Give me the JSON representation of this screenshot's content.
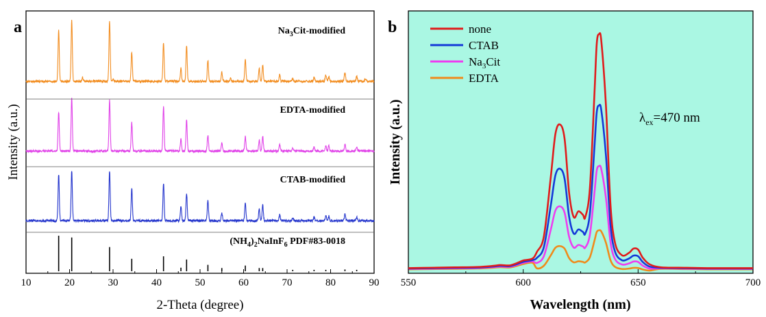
{
  "chart_data": [
    {
      "type": "line",
      "panel_label": "a",
      "xlabel": "2-Theta (degree)",
      "ylabel": "Intensity (a.u.)",
      "xlim": [
        10,
        90
      ],
      "x_ticks": [
        10,
        20,
        30,
        40,
        50,
        60,
        70,
        80,
        90
      ],
      "grid": false,
      "series": [
        {
          "name": "Na3Cit-modified",
          "label_main": "Na",
          "label_sub": "3",
          "label_rest": "Cit-modified",
          "color": "#f28c1e",
          "peaks": [
            [
              17.5,
              0.8
            ],
            [
              20.5,
              0.95
            ],
            [
              23.0,
              0.06
            ],
            [
              29.2,
              0.93
            ],
            [
              30.0,
              0.03
            ],
            [
              34.3,
              0.45
            ],
            [
              41.6,
              0.6
            ],
            [
              45.6,
              0.2
            ],
            [
              46.9,
              0.55
            ],
            [
              51.8,
              0.33
            ],
            [
              55.0,
              0.14
            ],
            [
              57.0,
              0.05
            ],
            [
              60.4,
              0.35
            ],
            [
              63.6,
              0.2
            ],
            [
              64.4,
              0.25
            ],
            [
              68.3,
              0.1
            ],
            [
              71.3,
              0.04
            ],
            [
              76.2,
              0.06
            ],
            [
              78.9,
              0.1
            ],
            [
              79.6,
              0.08
            ],
            [
              83.3,
              0.13
            ],
            [
              86.0,
              0.08
            ],
            [
              88.0,
              0.04
            ]
          ]
        },
        {
          "name": "EDTA-modified",
          "color": "#e040e8",
          "peaks": [
            [
              17.5,
              0.6
            ],
            [
              20.5,
              0.83
            ],
            [
              29.2,
              0.78
            ],
            [
              34.3,
              0.44
            ],
            [
              41.6,
              0.68
            ],
            [
              45.6,
              0.19
            ],
            [
              46.9,
              0.48
            ],
            [
              51.8,
              0.25
            ],
            [
              55.0,
              0.13
            ],
            [
              60.4,
              0.22
            ],
            [
              63.6,
              0.17
            ],
            [
              64.4,
              0.23
            ],
            [
              68.3,
              0.1
            ],
            [
              71.3,
              0.04
            ],
            [
              76.2,
              0.06
            ],
            [
              78.9,
              0.08
            ],
            [
              79.6,
              0.08
            ],
            [
              83.3,
              0.1
            ],
            [
              86.0,
              0.07
            ]
          ]
        },
        {
          "name": "CTAB-modified",
          "color": "#2233cc",
          "peaks": [
            [
              17.5,
              0.72
            ],
            [
              20.5,
              0.78
            ],
            [
              29.2,
              0.77
            ],
            [
              34.3,
              0.5
            ],
            [
              41.6,
              0.58
            ],
            [
              45.6,
              0.22
            ],
            [
              46.9,
              0.43
            ],
            [
              51.8,
              0.32
            ],
            [
              55.0,
              0.12
            ],
            [
              60.4,
              0.28
            ],
            [
              63.6,
              0.18
            ],
            [
              64.4,
              0.24
            ],
            [
              68.3,
              0.09
            ],
            [
              71.3,
              0.04
            ],
            [
              76.2,
              0.05
            ],
            [
              78.9,
              0.08
            ],
            [
              79.6,
              0.07
            ],
            [
              83.3,
              0.1
            ],
            [
              86.0,
              0.06
            ]
          ]
        },
        {
          "name": "(NH4)2NaInF6 PDF#83-0018",
          "type": "stick",
          "color": "#000000",
          "label_parts": [
            "(NH",
            "4",
            ")",
            "2",
            "NaInF",
            "6",
            "  PDF#83-0018"
          ],
          "peaks": [
            [
              17.5,
              1.0
            ],
            [
              20.5,
              0.95
            ],
            [
              29.2,
              0.68
            ],
            [
              34.3,
              0.35
            ],
            [
              41.6,
              0.42
            ],
            [
              45.6,
              0.1
            ],
            [
              46.9,
              0.33
            ],
            [
              51.8,
              0.18
            ],
            [
              55.0,
              0.09
            ],
            [
              60.4,
              0.16
            ],
            [
              63.6,
              0.09
            ],
            [
              64.4,
              0.09
            ],
            [
              71.3,
              0.04
            ],
            [
              76.2,
              0.04
            ],
            [
              78.9,
              0.04
            ],
            [
              83.3,
              0.05
            ],
            [
              86.0,
              0.04
            ]
          ]
        }
      ]
    },
    {
      "type": "line",
      "panel_label": "b",
      "xlabel": "Wavelength (nm)",
      "ylabel": "Intensity (a.u.)",
      "xlim": [
        550,
        700
      ],
      "x_ticks": [
        550,
        600,
        650,
        700
      ],
      "grid": false,
      "legend": "top-left",
      "background": "#aaf7e3",
      "annotation": {
        "main": "λ",
        "sub": "ex",
        "rest": "=470 nm"
      },
      "series": [
        {
          "name": "none",
          "color": "#e01b1b",
          "scale": 1.0
        },
        {
          "name": "CTAB",
          "color": "#1438d8",
          "scale": 0.7
        },
        {
          "name": "Na3Cit",
          "label_main": "Na",
          "label_sub": "3",
          "label_rest": "Cit",
          "color": "#ee3cf0",
          "scale": 0.445
        },
        {
          "name": "EDTA",
          "color": "#f08a1a",
          "scale": 0.175
        }
      ],
      "shape": [
        [
          550,
          0.02
        ],
        [
          560,
          0.022
        ],
        [
          570,
          0.024
        ],
        [
          580,
          0.026
        ],
        [
          587,
          0.032
        ],
        [
          590,
          0.036
        ],
        [
          594,
          0.034
        ],
        [
          597,
          0.045
        ],
        [
          600,
          0.06
        ],
        [
          604,
          0.07
        ],
        [
          606,
          0.085
        ],
        [
          609,
          0.15
        ],
        [
          612,
          0.4
        ],
        [
          614,
          0.58
        ],
        [
          616,
          0.62
        ],
        [
          618,
          0.56
        ],
        [
          620,
          0.33
        ],
        [
          622,
          0.23
        ],
        [
          624,
          0.255
        ],
        [
          626,
          0.24
        ],
        [
          627,
          0.23
        ],
        [
          629,
          0.35
        ],
        [
          631,
          0.75
        ],
        [
          632,
          0.96
        ],
        [
          633,
          1.0
        ],
        [
          634,
          0.97
        ],
        [
          636,
          0.7
        ],
        [
          638,
          0.28
        ],
        [
          640,
          0.12
        ],
        [
          643,
          0.07
        ],
        [
          646,
          0.08
        ],
        [
          648,
          0.098
        ],
        [
          650,
          0.094
        ],
        [
          652,
          0.06
        ],
        [
          655,
          0.032
        ],
        [
          660,
          0.024
        ],
        [
          670,
          0.022
        ],
        [
          680,
          0.02
        ],
        [
          690,
          0.02
        ],
        [
          700,
          0.02
        ]
      ]
    }
  ]
}
